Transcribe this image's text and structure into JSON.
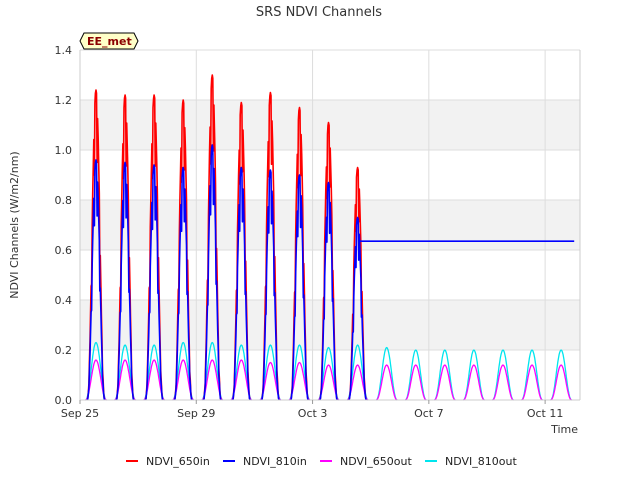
{
  "chart_data": {
    "type": "line",
    "title": "SRS NDVI Channels",
    "xlabel": "Time",
    "ylabel": "NDVI Channels (W/m2/nm)",
    "badge": "EE_met",
    "xlim": [
      0,
      17.2
    ],
    "ylim": [
      0,
      1.4
    ],
    "yticks": [
      0.0,
      0.2,
      0.4,
      0.6,
      0.8,
      1.0,
      1.2,
      1.4
    ],
    "ytick_labels": [
      "0.0",
      "0.2",
      "0.4",
      "0.6",
      "0.8",
      "1.0",
      "1.2",
      "1.4"
    ],
    "xticks": [
      0,
      4,
      8,
      12,
      16
    ],
    "xtick_labels": [
      "Sep 25",
      "Sep 29",
      "Oct 3",
      "Oct 7",
      "Oct 11"
    ],
    "grid": true,
    "legend": "bottom",
    "series": [
      {
        "name": "NDVI_650in",
        "color": "#ff0000",
        "daily_peaks": [
          1.24,
          1.22,
          1.22,
          1.2,
          1.3,
          1.19,
          1.23,
          1.17,
          1.11,
          0.93
        ],
        "flat_after": null
      },
      {
        "name": "NDVI_810in",
        "color": "#0000ff",
        "daily_peaks": [
          0.96,
          0.95,
          0.94,
          0.93,
          1.02,
          0.93,
          0.92,
          0.9,
          0.87,
          0.73
        ],
        "flat_after": {
          "start": 9.6,
          "end": 17.0,
          "value": 0.635
        }
      },
      {
        "name": "NDVI_650out",
        "color": "#ff00ff",
        "daily_peaks": [
          0.16,
          0.16,
          0.16,
          0.16,
          0.16,
          0.16,
          0.15,
          0.15,
          0.14,
          0.14,
          0.14,
          0.14,
          0.14,
          0.14,
          0.14,
          0.14,
          0.14
        ]
      },
      {
        "name": "NDVI_810out",
        "color": "#00e5ee",
        "daily_peaks": [
          0.23,
          0.22,
          0.22,
          0.23,
          0.23,
          0.22,
          0.22,
          0.22,
          0.21,
          0.22,
          0.21,
          0.2,
          0.2,
          0.2,
          0.2,
          0.2,
          0.2
        ]
      }
    ]
  }
}
